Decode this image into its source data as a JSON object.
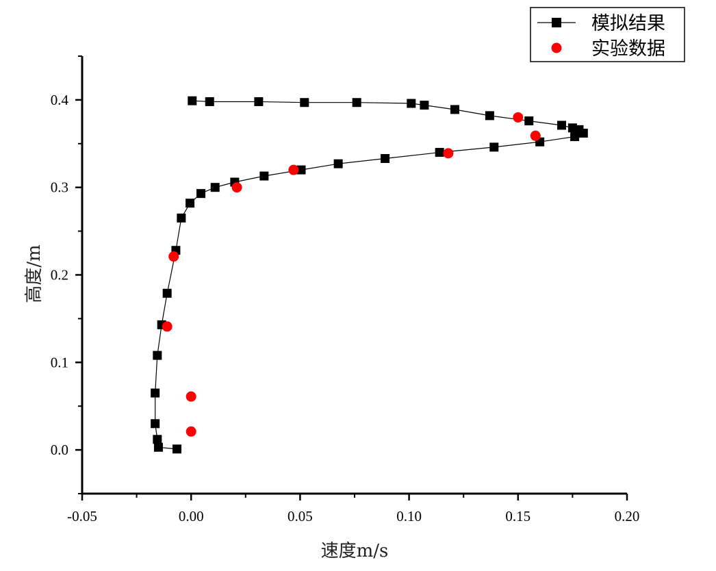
{
  "chart_data": {
    "type": "scatter",
    "xlabel": "速度m/s",
    "ylabel": "高度/m",
    "xlim": [
      -0.05,
      0.2
    ],
    "ylim": [
      -0.05,
      0.45
    ],
    "xticks": [
      -0.05,
      0.0,
      0.05,
      0.1,
      0.15,
      0.2
    ],
    "xtick_labels": [
      "-0.05",
      "0.00",
      "0.05",
      "0.10",
      "0.15",
      "0.20"
    ],
    "yticks": [
      0.0,
      0.1,
      0.2,
      0.3,
      0.4
    ],
    "ytick_labels": [
      "0.0",
      "0.1",
      "0.2",
      "0.3",
      "0.4"
    ],
    "grid": false,
    "legend_position": "top-right",
    "series": [
      {
        "name": "模拟结果",
        "style": "line+square",
        "color": "#000000",
        "points": [
          [
            -0.0065,
            0.001
          ],
          [
            -0.015,
            0.003
          ],
          [
            -0.0155,
            0.012
          ],
          [
            -0.0165,
            0.03
          ],
          [
            -0.0165,
            0.065
          ],
          [
            -0.0155,
            0.108
          ],
          [
            -0.0135,
            0.143
          ],
          [
            -0.011,
            0.179
          ],
          [
            -0.007,
            0.228
          ],
          [
            -0.0045,
            0.265
          ],
          [
            -0.0005,
            0.282
          ],
          [
            0.0045,
            0.293
          ],
          [
            0.011,
            0.3
          ],
          [
            0.02,
            0.306
          ],
          [
            0.0335,
            0.313
          ],
          [
            0.0505,
            0.32
          ],
          [
            0.0675,
            0.327
          ],
          [
            0.089,
            0.333
          ],
          [
            0.114,
            0.34
          ],
          [
            0.139,
            0.346
          ],
          [
            0.16,
            0.352
          ],
          [
            0.176,
            0.358
          ],
          [
            0.18,
            0.362
          ],
          [
            0.178,
            0.366
          ],
          [
            0.175,
            0.368
          ],
          [
            0.17,
            0.371
          ],
          [
            0.155,
            0.376
          ],
          [
            0.137,
            0.382
          ],
          [
            0.121,
            0.389
          ],
          [
            0.107,
            0.394
          ],
          [
            0.101,
            0.396
          ],
          [
            0.076,
            0.397
          ],
          [
            0.052,
            0.397
          ],
          [
            0.031,
            0.398
          ],
          [
            0.0085,
            0.398
          ],
          [
            0.0005,
            0.399
          ]
        ]
      },
      {
        "name": "实验数据",
        "style": "circle",
        "color": "#ff0000",
        "points": [
          [
            0.0,
            0.021
          ],
          [
            0.0,
            0.061
          ],
          [
            -0.011,
            0.141
          ],
          [
            -0.008,
            0.221
          ],
          [
            0.021,
            0.3
          ],
          [
            0.047,
            0.32
          ],
          [
            0.118,
            0.339
          ],
          [
            0.158,
            0.359
          ],
          [
            0.15,
            0.38
          ]
        ]
      }
    ]
  }
}
